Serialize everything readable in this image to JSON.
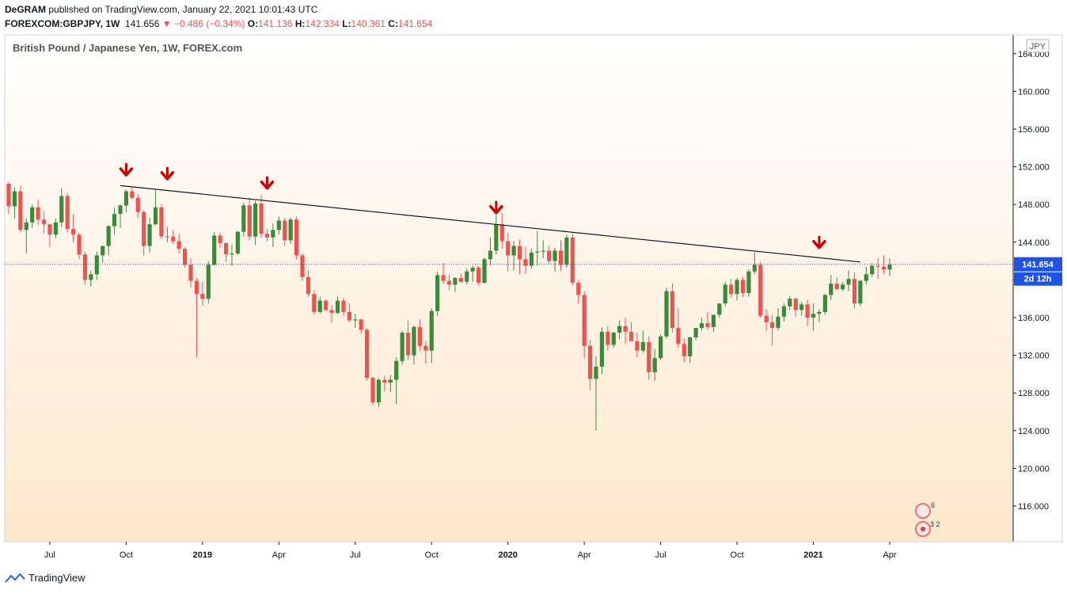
{
  "header": {
    "author": "DeGRAM",
    "published": "published on TradingView.com, January 22, 2021 10:01:43 UTC",
    "symbol": "FOREXCOM:GBPJPY, 1W",
    "last": "141.656",
    "change": "−0.486 (−0.34%)",
    "o_label": "O:",
    "o_val": "141.136",
    "h_label": "H:",
    "h_val": "142.334",
    "l_label": "L:",
    "l_val": "140.361",
    "c_label": "C:",
    "c_val": "141.654"
  },
  "footer": {
    "brand": "TradingView"
  },
  "colors": {
    "up": "#3a8a3a",
    "down": "#ef5350",
    "arrow": "#cc0000",
    "price_badge": "#1e53e5",
    "bg_top": "#ffffff",
    "bg_bottom": "#fde8cc"
  },
  "chart_data": {
    "type": "candlestick",
    "title": "British Pound / Japanese Yen, 1W, FOREX.com",
    "currency": "JPY",
    "ylim": [
      112,
      165
    ],
    "y_ticks": [
      "116.000",
      "120.000",
      "124.000",
      "128.000",
      "132.000",
      "136.000",
      "140.000",
      "144.000",
      "148.000",
      "152.000",
      "156.000",
      "160.000",
      "164.000"
    ],
    "x_ticks": [
      {
        "label": "Jul",
        "week": 7,
        "bold": false
      },
      {
        "label": "Oct",
        "week": 20,
        "bold": false
      },
      {
        "label": "2019",
        "week": 33,
        "bold": true
      },
      {
        "label": "Apr",
        "week": 46,
        "bold": false
      },
      {
        "label": "Jul",
        "week": 59,
        "bold": false
      },
      {
        "label": "Oct",
        "week": 72,
        "bold": false
      },
      {
        "label": "2020",
        "week": 85,
        "bold": true
      },
      {
        "label": "Apr",
        "week": 98,
        "bold": false
      },
      {
        "label": "Jul",
        "week": 111,
        "bold": false
      },
      {
        "label": "Oct",
        "week": 124,
        "bold": false
      },
      {
        "label": "2021",
        "week": 137,
        "bold": true
      },
      {
        "label": "Apr",
        "week": 150,
        "bold": false
      }
    ],
    "last_price": "141.654",
    "countdown": "2d 12h",
    "trendline": {
      "start": [
        19,
        150.0
      ],
      "end": [
        145,
        141.9
      ]
    },
    "arrows": [
      {
        "week": 20,
        "price": 151.2
      },
      {
        "week": 27,
        "price": 150.8
      },
      {
        "week": 44,
        "price": 149.8
      },
      {
        "week": 83,
        "price": 147.2
      },
      {
        "week": 138,
        "price": 143.5
      }
    ],
    "close_markers": [
      "149.5",
      "148.2",
      "145.5",
      "147.2",
      "145.5",
      "146.8",
      "146.0",
      "145.0",
      "146.5",
      "149.0",
      "147.5",
      "143.5",
      "142.0",
      "144.5",
      "143.0",
      "146.8",
      "147.5",
      "149.2",
      "149.0",
      "147.0",
      "146.5",
      "148.8",
      "147.2",
      "143.5",
      "144.5",
      "144.5",
      "143.8",
      "142.0",
      "141.0",
      "139.5",
      "138.0",
      "140.0",
      "141.0",
      "144.5",
      "143.5",
      "142.5",
      "143.0",
      "146.0",
      "148.0",
      "146.5",
      "144.0",
      "145.5",
      "146.5",
      "146.0",
      "143.0",
      "140.5",
      "138.5",
      "137.5",
      "137.0",
      "137.5",
      "136.5",
      "136.0",
      "134.5",
      "135.0",
      "129.8",
      "128.5",
      "128.0",
      "129.5",
      "129.0",
      "129.0",
      "131.8",
      "134.0",
      "133.0",
      "132.5",
      "135.0",
      "140.5",
      "140.5",
      "139.0",
      "139.5",
      "140.0",
      "139.5",
      "141.5",
      "143.0",
      "146.0",
      "145.0",
      "142.5",
      "143.5",
      "142.0",
      "143.0",
      "142.5",
      "143.0",
      "141.5",
      "145.0",
      "139.5",
      "138.0",
      "133.0",
      "130.5",
      "132.0",
      "136.0",
      "134.5",
      "135.0",
      "135.0",
      "132.5",
      "133.0",
      "133.5",
      "130.0",
      "131.8",
      "134.0",
      "139.5",
      "137.5",
      "133.5",
      "133.0",
      "134.0",
      "136.0",
      "135.5",
      "136.0",
      "137.0",
      "140.0",
      "138.5",
      "140.0",
      "140.5",
      "138.5",
      "141.0",
      "136.5",
      "135.5",
      "136.0",
      "137.5",
      "138.5",
      "137.0",
      "136.0",
      "137.0",
      "139.0",
      "138.5",
      "139.5",
      "140.0",
      "138.0",
      "140.5",
      "141.0",
      "141.0",
      "141.6"
    ],
    "candles": [
      [
        150.2,
        150.4,
        147.0,
        147.8
      ],
      [
        147.8,
        149.8,
        146.5,
        149.4
      ],
      [
        149.4,
        150.0,
        145.0,
        145.3
      ],
      [
        145.3,
        146.5,
        142.8,
        146.1
      ],
      [
        146.1,
        148.0,
        145.5,
        147.7
      ],
      [
        147.7,
        148.5,
        145.8,
        146.4
      ],
      [
        146.4,
        147.3,
        144.9,
        145.9
      ],
      [
        145.9,
        146.0,
        143.5,
        144.8
      ],
      [
        144.8,
        146.5,
        144.4,
        146.1
      ],
      [
        146.1,
        149.7,
        145.6,
        148.9
      ],
      [
        148.9,
        149.2,
        145.0,
        145.4
      ],
      [
        145.4,
        147.0,
        144.0,
        144.8
      ],
      [
        144.8,
        145.0,
        142.2,
        142.7
      ],
      [
        142.7,
        143.0,
        139.5,
        140.0
      ],
      [
        140.0,
        141.0,
        139.3,
        140.6
      ],
      [
        140.6,
        143.0,
        140.0,
        142.6
      ],
      [
        142.6,
        143.5,
        141.8,
        143.6
      ],
      [
        143.6,
        145.8,
        142.6,
        145.7
      ],
      [
        145.7,
        147.7,
        144.8,
        147.0
      ],
      [
        147.0,
        148.0,
        145.5,
        147.9
      ],
      [
        147.9,
        149.6,
        147.2,
        149.4
      ],
      [
        149.4,
        149.8,
        148.5,
        148.7
      ],
      [
        148.7,
        149.1,
        146.6,
        147.2
      ],
      [
        147.2,
        147.4,
        142.6,
        143.6
      ],
      [
        143.6,
        146.6,
        142.9,
        145.9
      ],
      [
        145.9,
        149.5,
        145.8,
        147.7
      ],
      [
        147.7,
        148.0,
        144.3,
        144.6
      ],
      [
        144.6,
        145.6,
        144.0,
        144.6
      ],
      [
        144.6,
        145.3,
        143.8,
        144.1
      ],
      [
        144.1,
        144.9,
        142.8,
        143.3
      ],
      [
        143.3,
        143.5,
        141.3,
        141.6
      ],
      [
        141.6,
        142.3,
        139.2,
        139.9
      ],
      [
        139.9,
        140.2,
        131.8,
        138.5
      ],
      [
        138.5,
        139.8,
        137.3,
        138.0
      ],
      [
        138.0,
        142.0,
        137.5,
        141.6
      ],
      [
        141.6,
        145.1,
        141.5,
        144.7
      ],
      [
        144.7,
        145.0,
        143.4,
        143.9
      ],
      [
        143.9,
        144.0,
        141.9,
        142.7
      ],
      [
        142.7,
        143.7,
        141.5,
        142.8
      ],
      [
        142.8,
        145.2,
        142.6,
        145.1
      ],
      [
        145.1,
        148.2,
        144.6,
        147.9
      ],
      [
        147.9,
        148.7,
        144.2,
        144.6
      ],
      [
        144.6,
        148.4,
        143.7,
        148.1
      ],
      [
        148.1,
        149.0,
        144.5,
        144.9
      ],
      [
        144.9,
        145.4,
        144.1,
        144.5
      ],
      [
        144.5,
        146.0,
        143.5,
        145.3
      ],
      [
        145.3,
        146.7,
        144.8,
        146.3
      ],
      [
        146.3,
        146.6,
        143.6,
        144.2
      ],
      [
        144.2,
        146.6,
        143.8,
        146.4
      ],
      [
        146.4,
        146.7,
        142.2,
        142.6
      ],
      [
        142.6,
        142.8,
        139.9,
        140.3
      ],
      [
        140.3,
        141.0,
        138.2,
        138.5
      ],
      [
        138.5,
        138.9,
        136.3,
        136.6
      ],
      [
        136.6,
        138.2,
        136.4,
        137.8
      ],
      [
        137.8,
        137.9,
        136.7,
        136.8
      ],
      [
        136.8,
        137.3,
        135.4,
        136.5
      ],
      [
        136.5,
        138.2,
        136.4,
        137.8
      ],
      [
        137.8,
        138.1,
        136.2,
        136.6
      ],
      [
        136.6,
        137.5,
        135.5,
        135.7
      ],
      [
        135.7,
        136.4,
        134.9,
        135.8
      ],
      [
        135.8,
        135.9,
        134.3,
        134.7
      ],
      [
        134.7,
        134.9,
        129.3,
        129.6
      ],
      [
        129.6,
        129.7,
        126.7,
        127.0
      ],
      [
        127.0,
        129.6,
        126.5,
        129.4
      ],
      [
        129.4,
        129.8,
        128.2,
        129.1
      ],
      [
        129.1,
        129.9,
        128.1,
        129.4
      ],
      [
        129.4,
        131.8,
        126.8,
        131.4
      ],
      [
        131.4,
        134.6,
        131.0,
        134.4
      ],
      [
        134.4,
        135.7,
        131.5,
        132.0
      ],
      [
        132.0,
        135.2,
        131.0,
        135.0
      ],
      [
        135.0,
        135.8,
        132.5,
        133.0
      ],
      [
        133.0,
        133.5,
        131.1,
        132.5
      ],
      [
        132.5,
        137.0,
        131.2,
        136.7
      ],
      [
        136.7,
        140.9,
        136.2,
        140.5
      ],
      [
        140.5,
        141.8,
        139.6,
        139.9
      ],
      [
        139.9,
        140.6,
        138.9,
        139.5
      ],
      [
        139.5,
        140.3,
        138.7,
        140.2
      ],
      [
        140.2,
        140.7,
        139.7,
        139.8
      ],
      [
        139.8,
        141.2,
        139.5,
        140.9
      ],
      [
        140.9,
        141.5,
        139.8,
        141.3
      ],
      [
        141.3,
        141.5,
        139.4,
        139.7
      ],
      [
        139.7,
        142.4,
        139.6,
        142.2
      ],
      [
        142.2,
        144.5,
        141.6,
        143.1
      ],
      [
        143.1,
        148.1,
        142.7,
        145.9
      ],
      [
        145.9,
        147.1,
        143.3,
        144.1
      ],
      [
        144.1,
        145.0,
        140.9,
        142.6
      ],
      [
        142.6,
        144.1,
        141.0,
        143.6
      ],
      [
        143.6,
        144.3,
        140.6,
        142.2
      ],
      [
        142.2,
        143.5,
        140.6,
        141.5
      ],
      [
        141.5,
        143.3,
        141.2,
        142.9
      ],
      [
        142.9,
        145.2,
        141.5,
        143.0
      ],
      [
        143.0,
        144.2,
        142.3,
        143.1
      ],
      [
        143.1,
        143.6,
        141.7,
        142.0
      ],
      [
        142.0,
        143.4,
        140.9,
        143.1
      ],
      [
        143.1,
        144.2,
        141.0,
        141.6
      ],
      [
        141.6,
        144.8,
        141.3,
        144.5
      ],
      [
        144.5,
        144.9,
        139.4,
        139.7
      ],
      [
        139.7,
        140.0,
        137.5,
        138.4
      ],
      [
        138.4,
        138.8,
        131.7,
        133.0
      ],
      [
        133.0,
        133.6,
        128.3,
        129.5
      ],
      [
        129.5,
        131.9,
        124.0,
        130.8
      ],
      [
        130.8,
        135.0,
        130.0,
        134.5
      ],
      [
        134.5,
        135.1,
        132.5,
        133.1
      ],
      [
        133.1,
        134.5,
        132.8,
        134.4
      ],
      [
        134.4,
        135.7,
        133.7,
        135.1
      ],
      [
        135.1,
        136.0,
        133.2,
        134.5
      ],
      [
        134.5,
        135.5,
        133.6,
        133.5
      ],
      [
        133.5,
        134.4,
        131.8,
        132.5
      ],
      [
        132.5,
        134.6,
        132.3,
        133.4
      ],
      [
        133.4,
        134.0,
        129.4,
        130.2
      ],
      [
        130.2,
        132.7,
        129.3,
        131.7
      ],
      [
        131.7,
        134.2,
        131.5,
        134.0
      ],
      [
        134.0,
        139.2,
        133.8,
        138.8
      ],
      [
        138.8,
        139.6,
        134.4,
        134.9
      ],
      [
        134.9,
        137.0,
        132.8,
        133.2
      ],
      [
        133.2,
        133.8,
        131.3,
        131.9
      ],
      [
        131.9,
        134.0,
        131.2,
        133.9
      ],
      [
        133.9,
        134.6,
        133.6,
        134.9
      ],
      [
        134.9,
        136.0,
        134.6,
        135.4
      ],
      [
        135.4,
        136.6,
        134.7,
        135.0
      ],
      [
        135.0,
        136.1,
        134.5,
        136.3
      ],
      [
        136.3,
        137.4,
        136.0,
        137.5
      ],
      [
        137.5,
        139.8,
        137.2,
        139.5
      ],
      [
        139.5,
        140.1,
        138.1,
        138.5
      ],
      [
        138.5,
        140.2,
        137.8,
        140.0
      ],
      [
        140.0,
        140.3,
        138.2,
        138.6
      ],
      [
        138.6,
        141.1,
        138.2,
        140.9
      ],
      [
        140.9,
        142.9,
        140.6,
        141.6
      ],
      [
        141.6,
        141.9,
        136.0,
        136.2
      ],
      [
        136.2,
        136.9,
        134.6,
        135.5
      ],
      [
        135.5,
        136.3,
        133.0,
        134.9
      ],
      [
        134.9,
        137.0,
        134.6,
        136.1
      ],
      [
        136.1,
        137.5,
        135.6,
        137.2
      ],
      [
        137.2,
        138.3,
        136.8,
        138.0
      ],
      [
        138.0,
        138.1,
        136.1,
        136.8
      ],
      [
        136.8,
        137.7,
        136.2,
        137.4
      ],
      [
        137.4,
        137.9,
        135.1,
        136.0
      ],
      [
        136.0,
        137.5,
        134.6,
        136.4
      ],
      [
        136.4,
        136.9,
        135.5,
        136.6
      ],
      [
        136.6,
        138.5,
        136.3,
        138.4
      ],
      [
        138.4,
        140.5,
        137.9,
        139.6
      ],
      [
        139.6,
        140.3,
        139.2,
        139.0
      ],
      [
        139.0,
        139.8,
        138.8,
        139.5
      ],
      [
        139.5,
        141.0,
        138.8,
        140.1
      ],
      [
        140.1,
        140.8,
        137.0,
        137.5
      ],
      [
        137.5,
        140.0,
        137.2,
        139.9
      ],
      [
        139.9,
        141.4,
        139.5,
        140.6
      ],
      [
        140.6,
        141.8,
        140.3,
        141.5
      ],
      [
        141.5,
        142.3,
        140.1,
        141.4
      ],
      [
        141.4,
        142.6,
        140.6,
        141.1
      ],
      [
        141.1,
        142.3,
        140.4,
        141.6
      ]
    ]
  }
}
